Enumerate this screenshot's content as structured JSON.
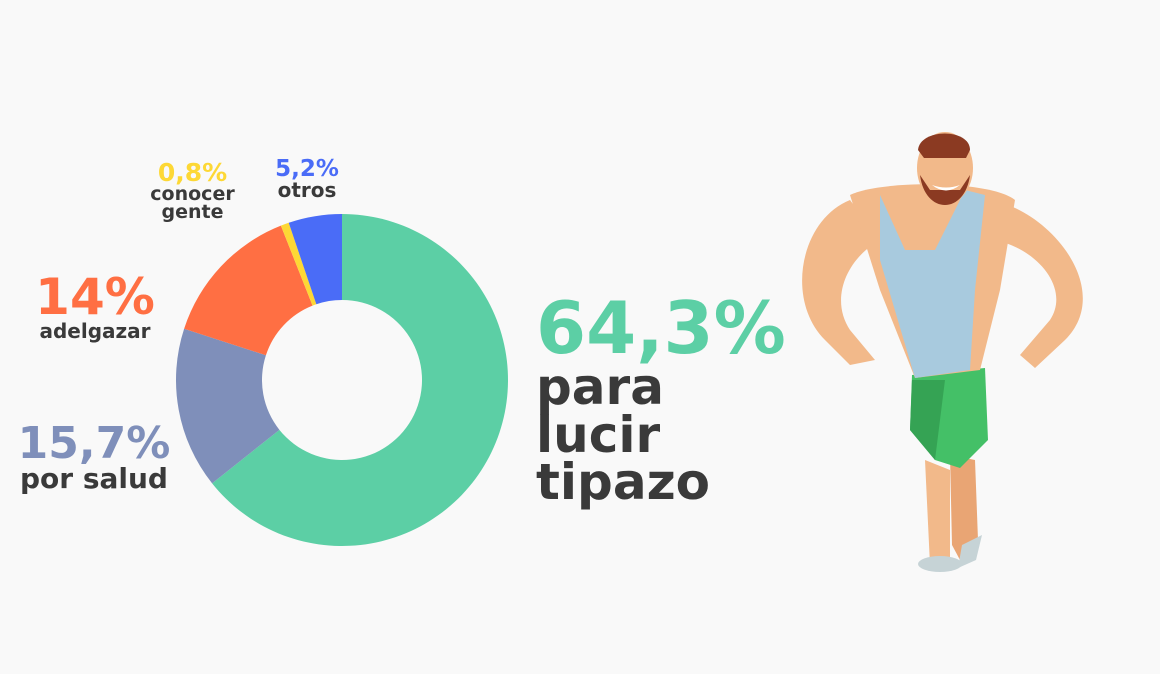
{
  "chart_data": {
    "type": "pie",
    "donut": true,
    "categories": [
      "para lucir tipazo",
      "por salud",
      "adelgazar",
      "conocer gente",
      "otros"
    ],
    "values": [
      64.3,
      15.7,
      14,
      0.8,
      5.2
    ],
    "value_labels": [
      "64,3%",
      "15,7%",
      "14%",
      "0,8%",
      "5,2%"
    ],
    "colors": [
      "#5ccfa5",
      "#7f8fba",
      "#ff6f43",
      "#fdd835",
      "#4a6cf7"
    ]
  }
}
